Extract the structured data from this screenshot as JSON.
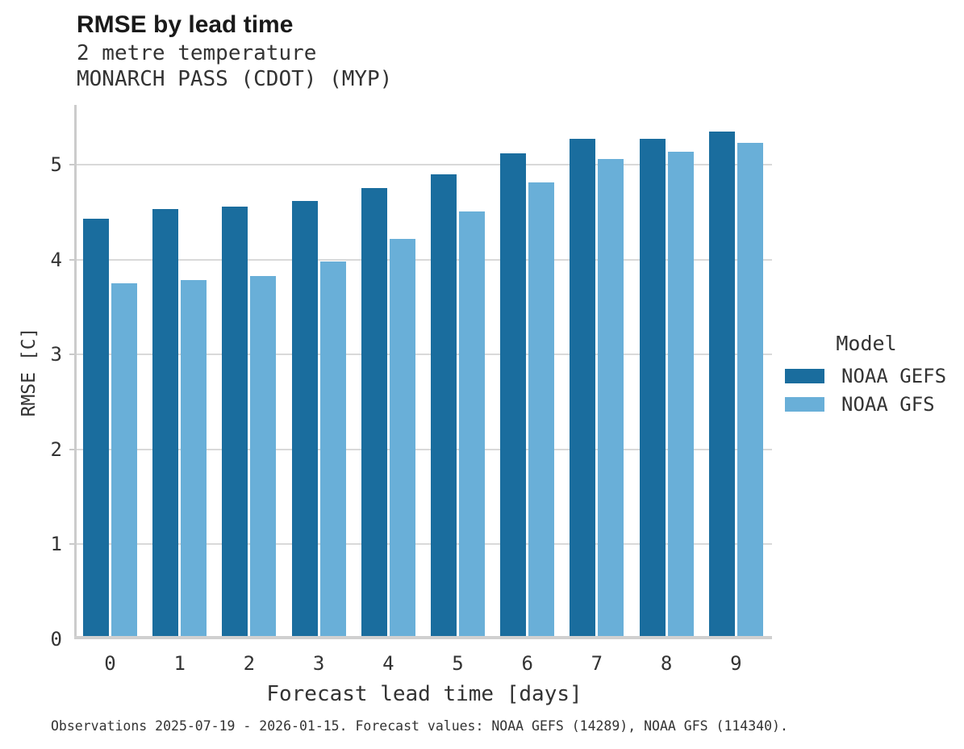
{
  "header": {
    "title": "RMSE by lead time",
    "subtitle_line1": "2 metre temperature",
    "subtitle_line2": "MONARCH PASS (CDOT) (MYP)"
  },
  "caption": "Observations 2025-07-19 - 2026-01-15. Forecast values: NOAA GEFS (14289), NOAA GFS (114340).",
  "chart_data": {
    "type": "bar",
    "title": "RMSE by lead time",
    "subtitle": [
      "2 metre temperature",
      "MONARCH PASS (CDOT) (MYP)"
    ],
    "xlabel": "Forecast lead time [days]",
    "ylabel": "RMSE [C]",
    "categories": [
      "0",
      "1",
      "2",
      "3",
      "4",
      "5",
      "6",
      "7",
      "8",
      "9"
    ],
    "yticks": [
      0,
      1,
      2,
      3,
      4,
      5
    ],
    "ylim": [
      0,
      5.63
    ],
    "grid": true,
    "legend_title": "Model",
    "legend_position": "right",
    "series": [
      {
        "name": "NOAA GEFS",
        "color": "#1A6D9E",
        "values": [
          4.43,
          4.53,
          4.56,
          4.62,
          4.75,
          4.9,
          5.12,
          5.27,
          5.27,
          5.35
        ]
      },
      {
        "name": "NOAA GFS",
        "color": "#69AFD8",
        "values": [
          3.75,
          3.78,
          3.83,
          3.98,
          4.22,
          4.51,
          4.81,
          5.06,
          5.14,
          5.23
        ]
      }
    ],
    "colors": {
      "grid": "#D9D9D9",
      "axis": "#CCCCCC",
      "text": "#333333"
    }
  }
}
